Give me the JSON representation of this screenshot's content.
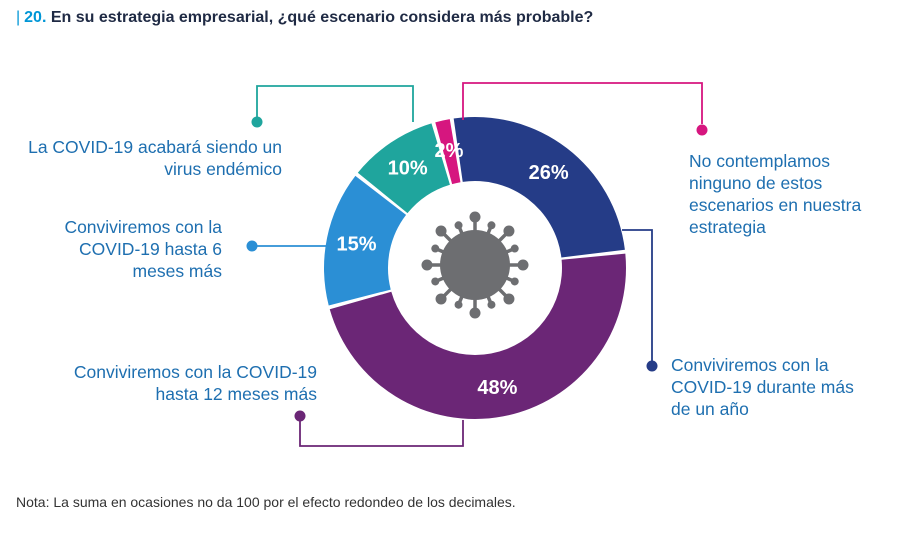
{
  "title": {
    "number": "20.",
    "text": "En su estrategia empresarial, ¿qué escenario considera más probable?"
  },
  "note": "Nota: La suma en ocasiones no da 100 por el efecto redondeo de los decimales.",
  "colors": {
    "accent": "#0096d6",
    "label_text": "#1e6fb0",
    "virus": "#6d6e71"
  },
  "chart_data": {
    "type": "pie",
    "style": "donut",
    "center_icon": "virus-icon",
    "slices": [
      {
        "label": "No contemplamos ninguno de estos escenarios en nuestra estrategia",
        "value": 2,
        "value_label": "2%",
        "color": "#d6167f"
      },
      {
        "label": "Conviviremos con la COVID-19 durante más de un año",
        "value": 26,
        "value_label": "26%",
        "color": "#253c87"
      },
      {
        "label": "Conviviremos con la COVID-19 hasta 12 meses más",
        "value": 48,
        "value_label": "48%",
        "color": "#6b2676"
      },
      {
        "label": "Conviviremos con la COVID-19 hasta 6 meses más",
        "value": 15,
        "value_label": "15%",
        "color": "#2b8fd5"
      },
      {
        "label": "La COVID-19 acabará siendo un virus endémico",
        "value": 10,
        "value_label": "10%",
        "color": "#1fa59d"
      }
    ]
  }
}
